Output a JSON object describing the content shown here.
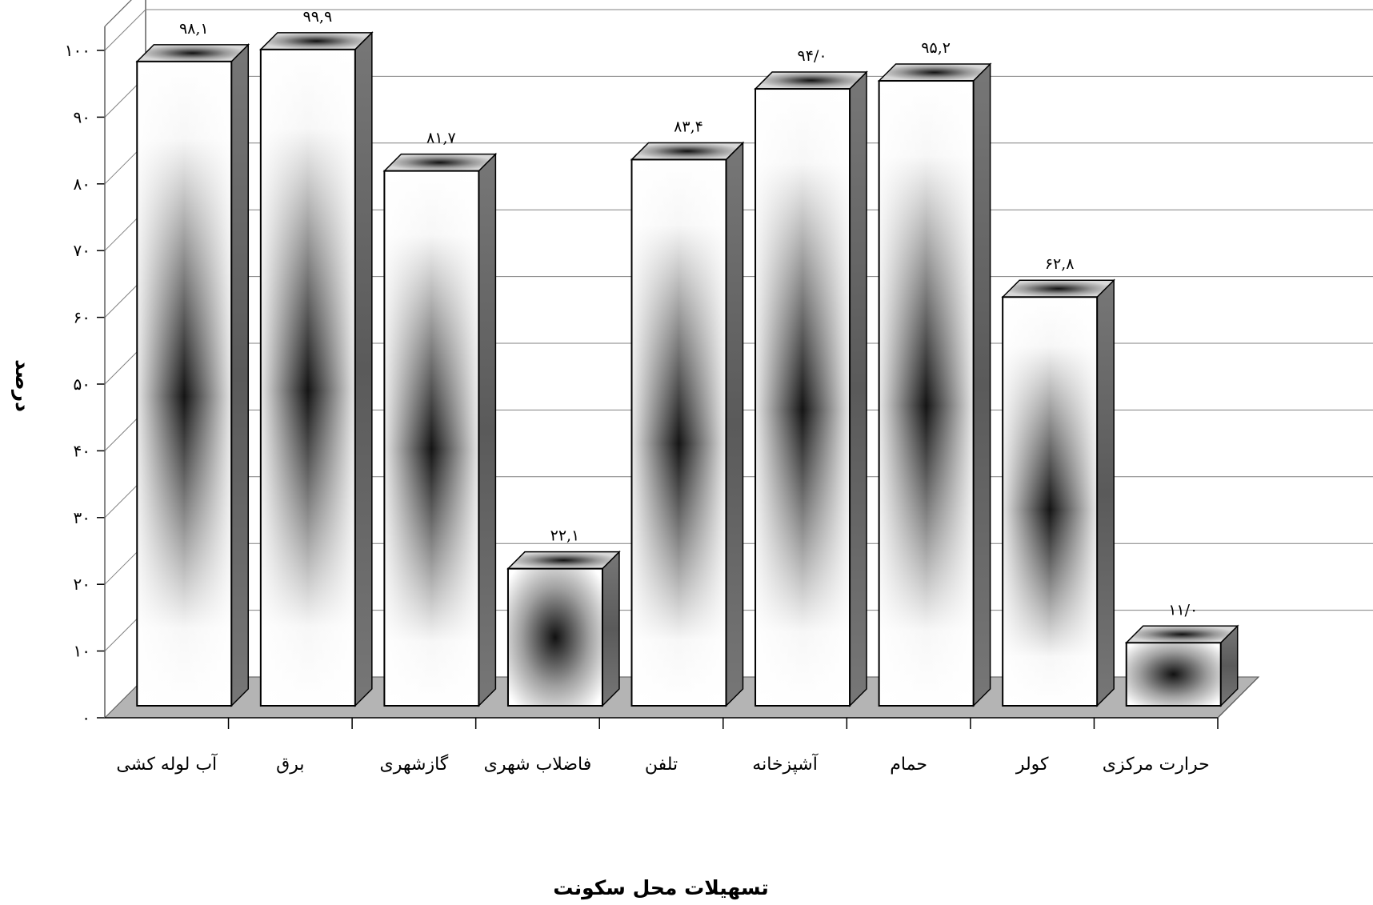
{
  "chart_data": {
    "type": "bar",
    "title": "",
    "xlabel": "تسهیلات محل سکونت",
    "ylabel": "درصد",
    "ylim": [
      0,
      100
    ],
    "yticks": [
      0,
      10,
      20,
      30,
      40,
      50,
      60,
      70,
      80,
      90,
      100
    ],
    "ytick_labels": [
      "۰",
      "۱۰",
      "۲۰",
      "۳۰",
      "۴۰",
      "۵۰",
      "۶۰",
      "۷۰",
      "۸۰",
      "۹۰",
      "۱۰۰"
    ],
    "grid": true,
    "style": "3d",
    "categories": [
      "آب لوله کشی",
      "برق",
      "گازشهری",
      "فاضلاب شهری",
      "تلفن",
      "آشپزخانه",
      "حمام",
      "کولر",
      "حرارت مرکزی"
    ],
    "values": [
      98.1,
      99.9,
      81.7,
      22.1,
      83.4,
      94.0,
      95.2,
      62.8,
      11.0
    ],
    "value_labels": [
      "۹۸,۱",
      "۹۹,۹",
      "۸۱,۷",
      "۲۲,۱",
      "۸۳,۴",
      "۹۴/۰",
      "۹۵,۲",
      "۶۲,۸",
      "۱۱/۰"
    ],
    "colors": {
      "bar_face_light": "#ffffff",
      "bar_face_dark": "#111111",
      "bar_side": "#6e6e6e",
      "floor": "#b4b4b4",
      "gridline": "#808080",
      "axis": "#606060"
    }
  }
}
